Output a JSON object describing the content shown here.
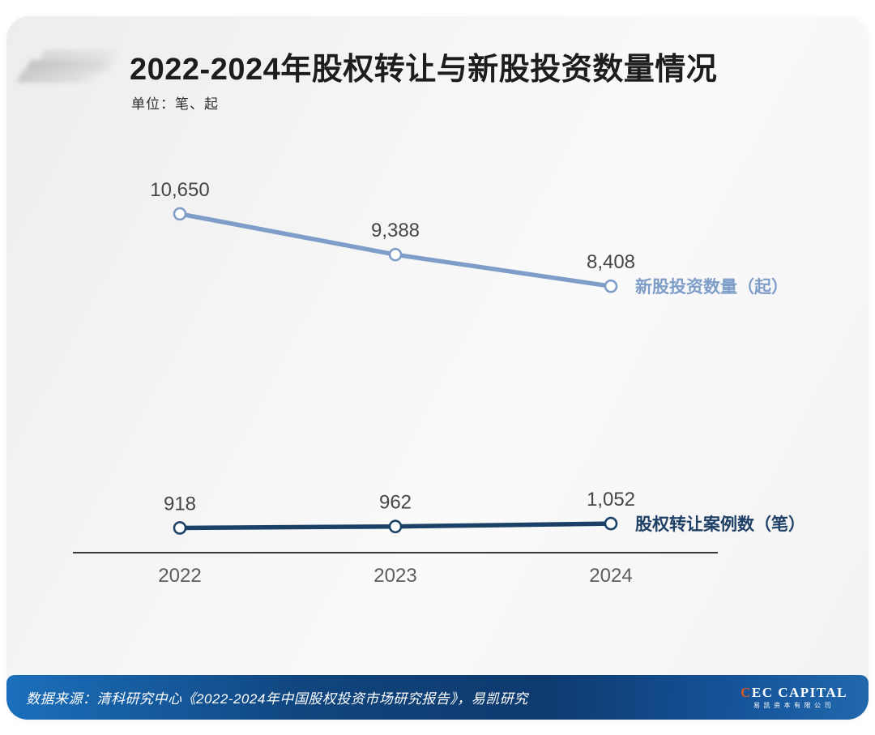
{
  "header": {
    "title": "2022-2024年股权转让与新股投资数量情况",
    "unit_label": "单位：笔、起"
  },
  "chart_data": {
    "type": "line",
    "title": "2022-2024年股权转让与新股投资数量情况",
    "unit_label": "单位：笔、起",
    "categories": [
      "2022",
      "2023",
      "2024"
    ],
    "series": [
      {
        "name": "新股投资数量（起）",
        "values": [
          10650,
          9388,
          8408
        ],
        "value_labels": [
          "10,650",
          "9,388",
          "8,408"
        ],
        "color": "#7e9dc8",
        "label_color": "#7e9dc8"
      },
      {
        "name": "股权转让案例数（笔）",
        "values": [
          918,
          962,
          1052
        ],
        "value_labels": [
          "918",
          "962",
          "1,052"
        ],
        "color": "#1c4166",
        "label_color": "#1e3f66"
      }
    ],
    "xlabel": "",
    "ylabel": "单位：笔、起",
    "ylim": [
      0,
      11000
    ],
    "grid": false,
    "legend_position": "right-of-last-point"
  },
  "footer": {
    "source_text": "数据来源：清科研究中心《2022-2024年中国股权投资市场研究报告》，易凯研究",
    "logo": {
      "name_first_letter": "C",
      "name_rest": "EC CAPITAL",
      "subtitle": "易凯资本有限公司",
      "accent_color": "#d4591f"
    }
  },
  "colors": {
    "series_new_stock": "#7e9dc8",
    "series_equity_transfer": "#1c4166",
    "axis": "#3a3a3a",
    "tick_label": "#5d5d5d",
    "data_label": "#464646",
    "footer_bar_start": "#1b6fbc",
    "footer_bar_mid": "#0e3a6e",
    "footer_bar_end": "#2168ad"
  }
}
